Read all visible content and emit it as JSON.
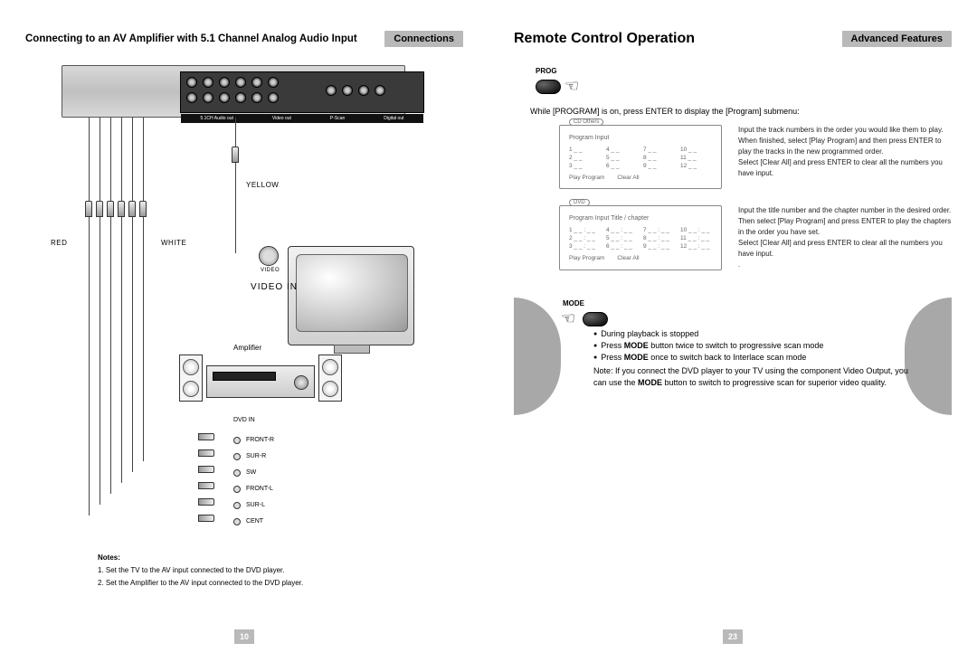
{
  "left_page": {
    "title": "Connecting to an AV Amplifier with 5.1 Channel Analog Audio Input",
    "badge": "Connections",
    "port_bar_labels": [
      "5.1CH Audio out",
      "Video out",
      "P-Scan",
      "Digital out"
    ],
    "color_labels": {
      "red": "RED",
      "white": "WHITE",
      "yellow": "YELLOW"
    },
    "tv_input_label": "VIDEO",
    "video_in": "VIDEO IN",
    "amp_label": "Amplifier",
    "dvd_in": "DVD IN",
    "channel_labels": [
      "FRONT-R",
      "SUR-R",
      "SW",
      "FRONT-L",
      "SUR-L",
      "CENT"
    ],
    "notes_title": "Notes:",
    "notes": [
      "1. Set the TV to the AV input connected to the DVD player.",
      "2. Set the Amplifier to the AV input connected to the DVD player."
    ],
    "page_num": "10"
  },
  "right_page": {
    "title": "Remote Control Operation",
    "badge": "Advanced Features",
    "prog_label": "PROG",
    "prog_caption": "While [PROGRAM] is on, press ENTER to display the [Program] submenu:",
    "cd_box": {
      "tab": "CD   Others",
      "header": "Program Input",
      "grid": [
        "1 _ _",
        "4 _ _",
        "7 _ _",
        "10 _ _",
        "2 _ _",
        "5 _ _",
        "8 _ _",
        "11 _ _",
        "3 _ _",
        "6 _ _",
        "9 _ _",
        "12 _ _"
      ],
      "footer": [
        "Play Program",
        "Clear All"
      ]
    },
    "cd_desc": [
      "Input the track numbers in the order you would like them to play. When finished, select [Play Program] and then press ENTER to play the tracks in the new programmed order.",
      "Select [Clear All] and press ENTER to clear all the numbers you have input."
    ],
    "dvd_box": {
      "tab": "DVD",
      "header": "Program Input      Title / chapter",
      "grid": [
        "1 _ _ : _ _",
        "4 _ _ : _ _",
        "7 _ _ : _ _",
        "10 _ _ : _ _",
        "2 _ _ : _ _",
        "5 _ _ : _ _",
        "8 _ _ : _ _",
        "11 _ _ : _ _",
        "3 _ _ : _ _",
        "6 _ _ : _ _",
        "9 _ _ : _ _",
        "12 _ _ : _ _"
      ],
      "footer": [
        "Play Program",
        "Clear All"
      ]
    },
    "dvd_desc": [
      "Input the title number and the chapter number in the desired order. Then select [Play Program] and press ENTER to play the chapters in the order you have set.",
      "Select [Clear All] and press ENTER to clear all the numbers you have input.",
      "."
    ],
    "mode_label": "MODE",
    "mode_lines": [
      "During playback is stopped",
      "Press <b>MODE</b> button twice to switch to progressive scan mode",
      "Press <b>MODE</b> once to switch back to Interlace scan mode"
    ],
    "mode_note": "Note: If you connect the DVD player to your TV using the component Video Output, you can use the <b>MODE</b> button to switch to progressive scan for superior video quality.",
    "page_num": "23"
  },
  "colors": {
    "banner_gray": "#b9b9b9",
    "text": "#000000"
  }
}
